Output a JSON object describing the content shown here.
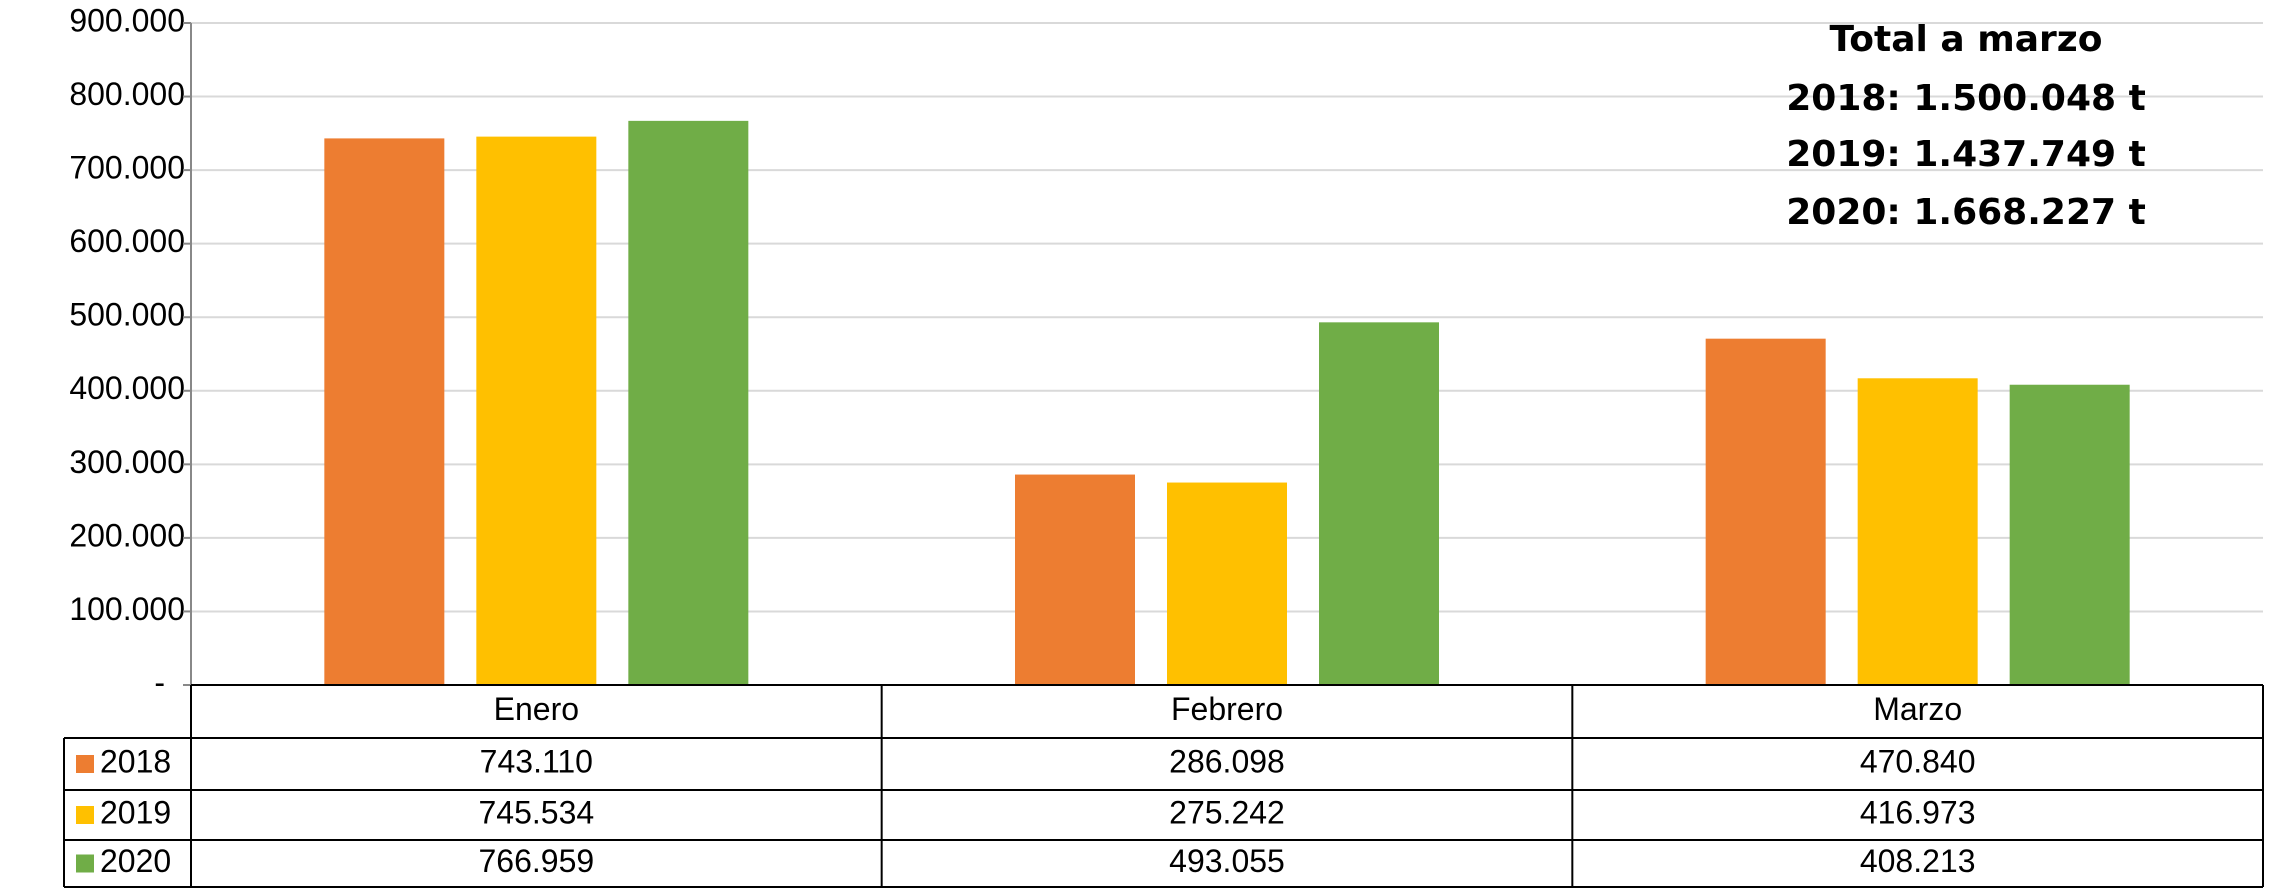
{
  "chart_data": {
    "type": "bar",
    "annotations": [
      "Total a marzo",
      "2018: 1.500.048 t",
      "2019: 1.437.749 t",
      "2020: 1.668.227 t"
    ],
    "categories": [
      "Enero",
      "Febrero",
      "Marzo"
    ],
    "series": [
      {
        "name": "2018",
        "color": "#ed7d31",
        "values": [
          743110,
          286098,
          470840
        ],
        "value_labels": [
          "743.110",
          "286.098",
          "470.840"
        ]
      },
      {
        "name": "2019",
        "color": "#ffc000",
        "values": [
          745534,
          275242,
          416973
        ],
        "value_labels": [
          "745.534",
          "275.242",
          "416.973"
        ]
      },
      {
        "name": "2020",
        "color": "#70ad47",
        "values": [
          766959,
          493055,
          408213
        ],
        "value_labels": [
          "766.959",
          "493.055",
          "408.213"
        ]
      }
    ],
    "ylim": [
      0,
      900000
    ],
    "yticks": [
      {
        "value": 0,
        "label": "-"
      },
      {
        "value": 100000,
        "label": "100.000"
      },
      {
        "value": 200000,
        "label": "200.000"
      },
      {
        "value": 300000,
        "label": "300.000"
      },
      {
        "value": 400000,
        "label": "400.000"
      },
      {
        "value": 500000,
        "label": "500.000"
      },
      {
        "value": 600000,
        "label": "600.000"
      },
      {
        "value": 700000,
        "label": "700.000"
      },
      {
        "value": 800000,
        "label": "800.000"
      },
      {
        "value": 900000,
        "label": "900.000"
      }
    ],
    "grid": true
  }
}
